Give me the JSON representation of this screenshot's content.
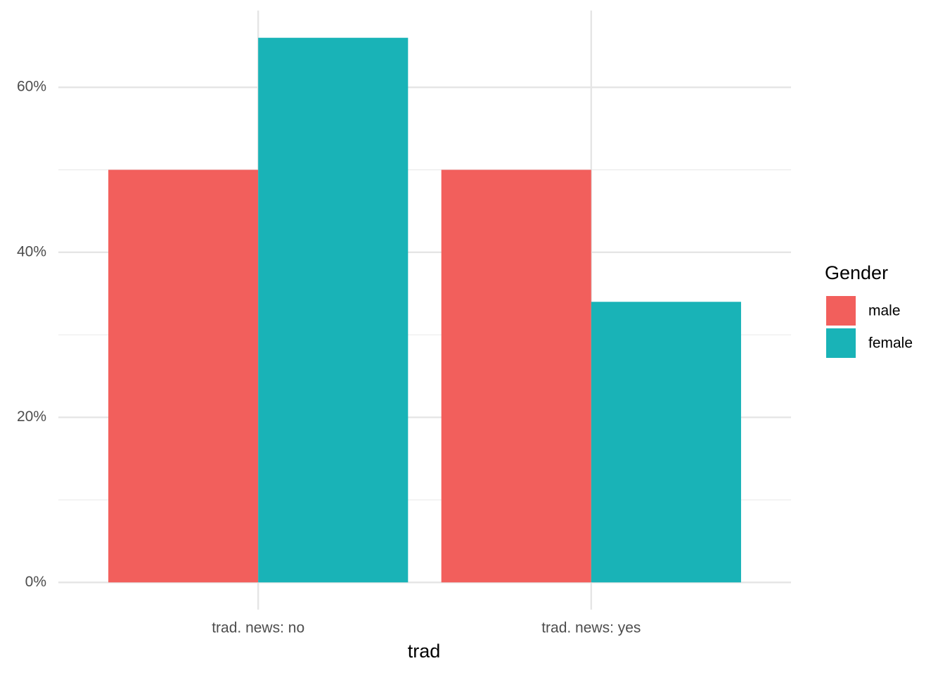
{
  "chart_data": {
    "type": "bar",
    "x_label": "trad",
    "categories": [
      "trad. news: no",
      "trad. news: yes"
    ],
    "series": [
      {
        "name": "male",
        "color": "#f25f5c",
        "values": [
          50,
          50
        ]
      },
      {
        "name": "female",
        "color": "#19b3b7",
        "values": [
          66,
          34
        ]
      }
    ],
    "ylim": [
      -3.3,
      69.3
    ],
    "yticks": [
      {
        "value": 0,
        "label": "0%"
      },
      {
        "value": 20,
        "label": "20%"
      },
      {
        "value": 40,
        "label": "40%"
      },
      {
        "value": 60,
        "label": "60%"
      }
    ],
    "grid": true,
    "legend_title": "Gender",
    "legend_position": "right"
  }
}
